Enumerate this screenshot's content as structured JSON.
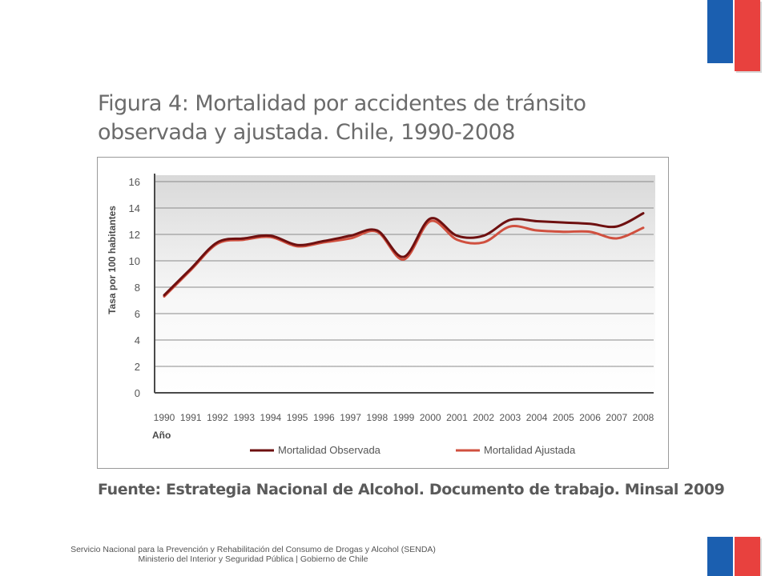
{
  "slide": {
    "title_line1": "Figura 4: Mortalidad por accidentes de tránsito",
    "title_line2": "observada y ajustada. Chile, 1990-2008",
    "source": "Fuente: Estrategia Nacional de Alcohol. Documento de trabajo. Minsal 2009",
    "footer_line1": "Servicio Nacional para la Prevención y Rehabilitación del Consumo de Drogas y Alcohol (SENDA)",
    "footer_line2": "Ministerio del Interior y Seguridad Pública | Gobierno de Chile"
  },
  "colors": {
    "flag_blue": "#1b5fb0",
    "flag_red": "#e8413e",
    "observada": "#6e1010",
    "ajustada": "#d0503f"
  },
  "chart_data": {
    "type": "line",
    "xlabel": "Año",
    "ylabel": "Tasa por 100 habitantes",
    "x": [
      "1990",
      "1991",
      "1992",
      "1993",
      "1994",
      "1995",
      "1996",
      "1997",
      "1998",
      "1999",
      "2000",
      "2001",
      "2002",
      "2003",
      "2004",
      "2005",
      "2006",
      "2007",
      "2008"
    ],
    "ylim": [
      0,
      16
    ],
    "yticks": [
      0,
      2,
      4,
      6,
      8,
      10,
      12,
      14,
      16
    ],
    "grid": true,
    "legend_position": "bottom",
    "series": [
      {
        "name": "Mortalidad Observada",
        "values": [
          7.4,
          9.4,
          11.4,
          11.7,
          11.9,
          11.2,
          11.5,
          11.9,
          12.3,
          10.3,
          13.2,
          11.9,
          11.9,
          13.1,
          13.0,
          12.9,
          12.8,
          12.6,
          13.6
        ]
      },
      {
        "name": "Mortalidad Ajustada",
        "values": [
          7.3,
          9.3,
          11.3,
          11.6,
          11.8,
          11.1,
          11.4,
          11.7,
          12.2,
          10.1,
          13.0,
          11.6,
          11.4,
          12.6,
          12.3,
          12.2,
          12.2,
          11.7,
          12.5
        ]
      }
    ]
  }
}
